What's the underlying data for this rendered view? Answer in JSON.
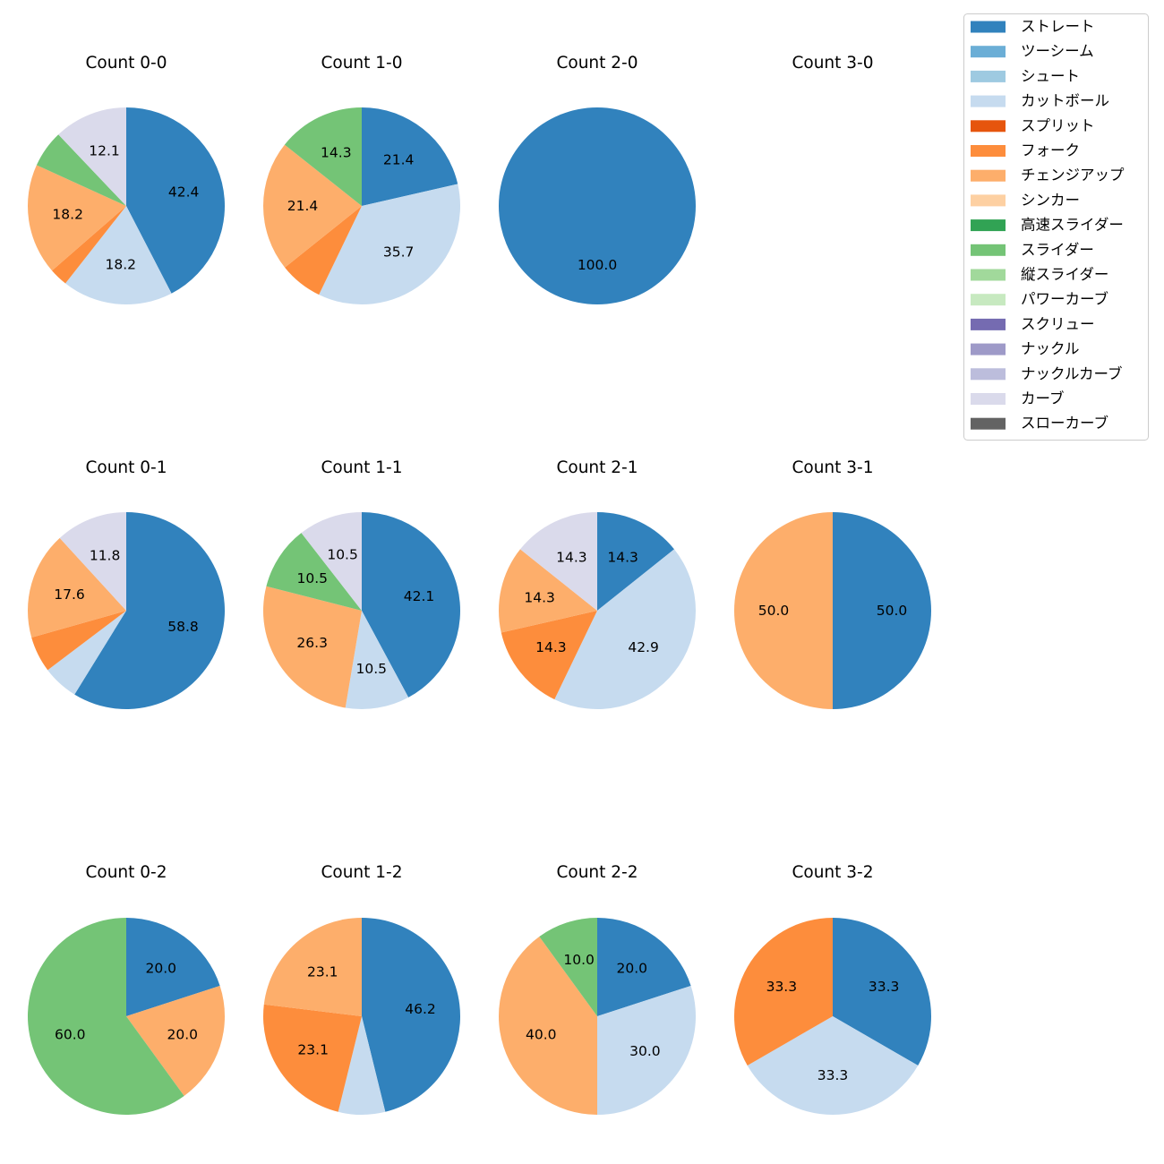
{
  "chart_data": {
    "type": "pie",
    "legend_position": "top-right",
    "legend": [
      {
        "name": "ストレート",
        "color": "#3182bd"
      },
      {
        "name": "ツーシーム",
        "color": "#6baed6"
      },
      {
        "name": "シュート",
        "color": "#9ecae1"
      },
      {
        "name": "カットボール",
        "color": "#c6dbef"
      },
      {
        "name": "スプリット",
        "color": "#e6550d"
      },
      {
        "name": "フォーク",
        "color": "#fd8d3c"
      },
      {
        "name": "チェンジアップ",
        "color": "#fdae6b"
      },
      {
        "name": "シンカー",
        "color": "#fdd0a2"
      },
      {
        "name": "高速スライダー",
        "color": "#31a354"
      },
      {
        "name": "スライダー",
        "color": "#74c476"
      },
      {
        "name": "縦スライダー",
        "color": "#a1d99b"
      },
      {
        "name": "パワーカーブ",
        "color": "#c7e9c0"
      },
      {
        "name": "スクリュー",
        "color": "#756bb1"
      },
      {
        "name": "ナックル",
        "color": "#9e9ac8"
      },
      {
        "name": "ナックルカーブ",
        "color": "#bcbddc"
      },
      {
        "name": "カーブ",
        "color": "#dadaeb"
      },
      {
        "name": "スローカーブ",
        "color": "#636363"
      }
    ],
    "pies": [
      {
        "title": "Count 0-0",
        "slices": [
          {
            "name": "ストレート",
            "value": 42.4,
            "label": "42.4"
          },
          {
            "name": "カットボール",
            "value": 18.2,
            "label": "18.2"
          },
          {
            "name": "フォーク",
            "value": 3.0,
            "label": ""
          },
          {
            "name": "チェンジアップ",
            "value": 18.2,
            "label": "18.2"
          },
          {
            "name": "スライダー",
            "value": 6.1,
            "label": ""
          },
          {
            "name": "カーブ",
            "value": 12.1,
            "label": "12.1"
          }
        ]
      },
      {
        "title": "Count 1-0",
        "slices": [
          {
            "name": "ストレート",
            "value": 21.4,
            "label": "21.4"
          },
          {
            "name": "カットボール",
            "value": 35.7,
            "label": "35.7"
          },
          {
            "name": "フォーク",
            "value": 7.1,
            "label": ""
          },
          {
            "name": "チェンジアップ",
            "value": 21.4,
            "label": "21.4"
          },
          {
            "name": "スライダー",
            "value": 14.3,
            "label": "14.3"
          }
        ]
      },
      {
        "title": "Count 2-0",
        "slices": [
          {
            "name": "ストレート",
            "value": 100.0,
            "label": "100.0"
          }
        ]
      },
      {
        "title": "Count 3-0",
        "slices": []
      },
      {
        "title": "Count 0-1",
        "slices": [
          {
            "name": "ストレート",
            "value": 58.8,
            "label": "58.8"
          },
          {
            "name": "カットボール",
            "value": 5.9,
            "label": ""
          },
          {
            "name": "フォーク",
            "value": 5.9,
            "label": ""
          },
          {
            "name": "チェンジアップ",
            "value": 17.6,
            "label": "17.6"
          },
          {
            "name": "カーブ",
            "value": 11.8,
            "label": "11.8"
          }
        ]
      },
      {
        "title": "Count 1-1",
        "slices": [
          {
            "name": "ストレート",
            "value": 42.1,
            "label": "42.1"
          },
          {
            "name": "カットボール",
            "value": 10.5,
            "label": "10.5"
          },
          {
            "name": "チェンジアップ",
            "value": 26.3,
            "label": "26.3"
          },
          {
            "name": "スライダー",
            "value": 10.5,
            "label": "10.5"
          },
          {
            "name": "カーブ",
            "value": 10.5,
            "label": "10.5"
          }
        ]
      },
      {
        "title": "Count 2-1",
        "slices": [
          {
            "name": "ストレート",
            "value": 14.3,
            "label": "14.3"
          },
          {
            "name": "カットボール",
            "value": 42.9,
            "label": "42.9"
          },
          {
            "name": "フォーク",
            "value": 14.3,
            "label": "14.3"
          },
          {
            "name": "チェンジアップ",
            "value": 14.3,
            "label": "14.3"
          },
          {
            "name": "カーブ",
            "value": 14.3,
            "label": "14.3"
          }
        ]
      },
      {
        "title": "Count 3-1",
        "slices": [
          {
            "name": "ストレート",
            "value": 50.0,
            "label": "50.0"
          },
          {
            "name": "チェンジアップ",
            "value": 50.0,
            "label": "50.0"
          }
        ]
      },
      {
        "title": "Count 0-2",
        "slices": [
          {
            "name": "ストレート",
            "value": 20.0,
            "label": "20.0"
          },
          {
            "name": "チェンジアップ",
            "value": 20.0,
            "label": "20.0"
          },
          {
            "name": "スライダー",
            "value": 60.0,
            "label": "60.0"
          }
        ]
      },
      {
        "title": "Count 1-2",
        "slices": [
          {
            "name": "ストレート",
            "value": 46.2,
            "label": "46.2"
          },
          {
            "name": "カットボール",
            "value": 7.7,
            "label": ""
          },
          {
            "name": "フォーク",
            "value": 23.1,
            "label": "23.1"
          },
          {
            "name": "チェンジアップ",
            "value": 23.1,
            "label": "23.1"
          }
        ]
      },
      {
        "title": "Count 2-2",
        "slices": [
          {
            "name": "ストレート",
            "value": 20.0,
            "label": "20.0"
          },
          {
            "name": "カットボール",
            "value": 30.0,
            "label": "30.0"
          },
          {
            "name": "チェンジアップ",
            "value": 40.0,
            "label": "40.0"
          },
          {
            "name": "スライダー",
            "value": 10.0,
            "label": "10.0"
          }
        ]
      },
      {
        "title": "Count 3-2",
        "slices": [
          {
            "name": "ストレート",
            "value": 33.3,
            "label": "33.3"
          },
          {
            "name": "カットボール",
            "value": 33.3,
            "label": "33.3"
          },
          {
            "name": "フォーク",
            "value": 33.3,
            "label": "33.3"
          }
        ]
      }
    ]
  }
}
